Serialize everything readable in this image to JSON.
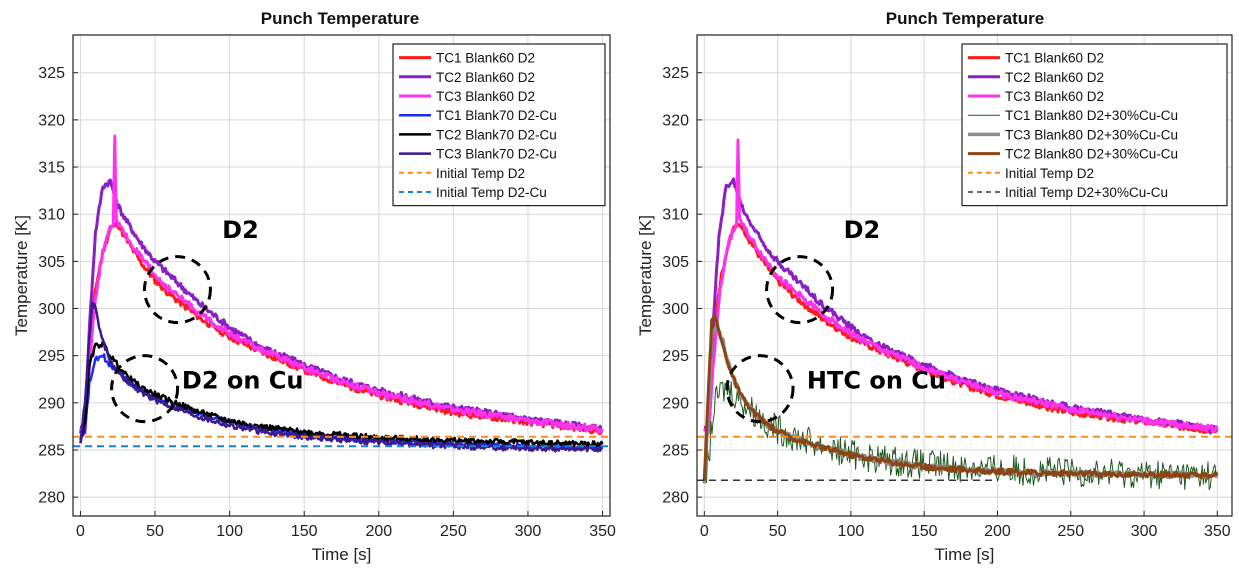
{
  "chart_data": [
    {
      "type": "line",
      "title": "Punch Temperature",
      "xlabel": "Time [s]",
      "ylabel": "Temperature [K]",
      "xlim": [
        -5,
        355
      ],
      "ylim": [
        278,
        329
      ],
      "xticks": [
        0,
        50,
        100,
        150,
        200,
        250,
        300,
        350
      ],
      "yticks": [
        280,
        285,
        290,
        295,
        300,
        305,
        310,
        315,
        320,
        325
      ],
      "grid": true,
      "legend_position": "top-right",
      "annotations": [
        {
          "text": "D2",
          "x": 95,
          "y": 307.5,
          "circle_x": 65,
          "circle_y": 302
        },
        {
          "text": "D2 on Cu",
          "x": 68,
          "y": 291.5,
          "circle_x": 43,
          "circle_y": 291.5
        }
      ],
      "series": [
        {
          "name": "TC1 Blank60 D2",
          "color": "#ff1a1a",
          "width": 3,
          "noise": 0.35,
          "x": [
            0,
            3,
            6,
            10,
            15,
            20,
            25,
            30,
            40,
            50,
            60,
            80,
            100,
            120,
            150,
            175,
            200,
            250,
            300,
            350
          ],
          "y": [
            287,
            287,
            295,
            302,
            306,
            308.5,
            309,
            307.5,
            305,
            303,
            301.5,
            299,
            297,
            295.5,
            293.5,
            292,
            290.8,
            289,
            288,
            287
          ]
        },
        {
          "name": "TC2 Blank60 D2",
          "color": "#8a1fc4",
          "width": 3,
          "noise": 0.35,
          "x": [
            0,
            3,
            6,
            10,
            15,
            20,
            25,
            30,
            40,
            50,
            60,
            80,
            100,
            120,
            150,
            175,
            200,
            250,
            300,
            350
          ],
          "y": [
            287,
            288,
            298,
            308,
            313,
            313.5,
            311,
            309.5,
            307,
            305,
            303.5,
            300.5,
            298,
            296,
            294,
            292.5,
            291.3,
            289.5,
            288.3,
            287.2
          ]
        },
        {
          "name": "TC3 Blank60 D2",
          "color": "#ff33ee",
          "width": 3,
          "noise": 0.35,
          "x": [
            0,
            3,
            6,
            10,
            15,
            20,
            22,
            23,
            24,
            26,
            30,
            40,
            50,
            60,
            80,
            100,
            120,
            150,
            175,
            200,
            250,
            300,
            350
          ],
          "y": [
            287,
            287,
            294,
            301,
            306,
            308.5,
            309,
            318,
            309.5,
            308.8,
            307.8,
            305.5,
            303.5,
            302,
            299.5,
            297.3,
            295.7,
            293.7,
            292.3,
            291,
            289.3,
            288.1,
            287.2
          ]
        },
        {
          "name": "TC1 Blank70 D2-Cu",
          "color": "#1a2ef0",
          "width": 2.5,
          "noise": 0.3,
          "x": [
            0,
            3,
            6,
            10,
            15,
            20,
            25,
            30,
            40,
            50,
            60,
            80,
            100,
            120,
            150,
            200,
            250,
            300,
            350
          ],
          "y": [
            286,
            287,
            292,
            294.5,
            295,
            294,
            293.5,
            292.5,
            291.3,
            290.6,
            290,
            288.8,
            288,
            287.3,
            286.6,
            286,
            285.6,
            285.4,
            285.2
          ]
        },
        {
          "name": "TC2 Blank70 D2-Cu",
          "color": "#000000",
          "width": 2.5,
          "noise": 0.3,
          "x": [
            0,
            3,
            6,
            10,
            15,
            20,
            25,
            30,
            40,
            50,
            60,
            80,
            100,
            120,
            150,
            200,
            250,
            300,
            350
          ],
          "y": [
            286,
            288,
            294,
            296,
            296.3,
            295,
            294,
            293,
            291.7,
            290.9,
            290.2,
            289,
            288.1,
            287.5,
            286.9,
            286.3,
            286,
            285.8,
            285.6
          ]
        },
        {
          "name": "TC3 Blank70 D2-Cu",
          "color": "#3b1a8c",
          "width": 2.5,
          "noise": 0.3,
          "x": [
            0,
            3,
            6,
            8,
            10,
            15,
            20,
            25,
            30,
            40,
            50,
            60,
            80,
            100,
            120,
            150,
            200,
            250,
            300,
            350
          ],
          "y": [
            286,
            290,
            297,
            300.5,
            300,
            296.5,
            294.5,
            293.3,
            292.5,
            291.2,
            290.3,
            289.7,
            288.5,
            287.6,
            287,
            286.4,
            285.8,
            285.4,
            285.2,
            285.1
          ]
        },
        {
          "name": "Initial Temp D2",
          "color": "#ff8c1a",
          "width": 2,
          "dash": "7,5",
          "noise": 0,
          "x": [
            -5,
            355
          ],
          "y": [
            286.4,
            286.4
          ]
        },
        {
          "name": "Initial Temp D2-Cu",
          "color": "#1a7fd6",
          "width": 2,
          "dash": "7,5",
          "noise": 0,
          "x": [
            -5,
            355
          ],
          "y": [
            285.4,
            285.4
          ]
        }
      ]
    },
    {
      "type": "line",
      "title": "Punch Temperature",
      "xlabel": "Time [s]",
      "ylabel": "Temperature [K]",
      "xlim": [
        -5,
        360
      ],
      "ylim": [
        278,
        329
      ],
      "xticks": [
        0,
        50,
        100,
        150,
        200,
        250,
        300,
        350
      ],
      "yticks": [
        280,
        285,
        290,
        295,
        300,
        305,
        310,
        315,
        320,
        325
      ],
      "grid": true,
      "legend_position": "top-right",
      "annotations": [
        {
          "text": "D2",
          "x": 95,
          "y": 307.5,
          "circle_x": 65,
          "circle_y": 302
        },
        {
          "text": "HTC on Cu",
          "x": 70,
          "y": 291.5,
          "circle_x": 38,
          "circle_y": 291.5
        }
      ],
      "series": [
        {
          "name": "TC1 Blank60 D2",
          "color": "#ff1a1a",
          "width": 3,
          "noise": 0.35,
          "x": [
            0,
            3,
            6,
            10,
            15,
            20,
            25,
            30,
            40,
            50,
            60,
            80,
            100,
            120,
            150,
            175,
            200,
            250,
            300,
            350
          ],
          "y": [
            287,
            287,
            295,
            302,
            306,
            308.5,
            309,
            307.5,
            305,
            303,
            301.5,
            299,
            297,
            295.5,
            293.5,
            292,
            290.8,
            289,
            288,
            287
          ]
        },
        {
          "name": "TC2 Blank60 D2",
          "color": "#8a1fc4",
          "width": 3,
          "noise": 0.35,
          "x": [
            0,
            3,
            6,
            10,
            15,
            20,
            25,
            30,
            40,
            50,
            60,
            80,
            100,
            120,
            150,
            175,
            200,
            250,
            300,
            350
          ],
          "y": [
            287,
            288,
            298,
            308,
            313,
            313.5,
            311,
            309.5,
            307,
            305,
            303.5,
            300.5,
            298,
            296,
            294,
            292.5,
            291.3,
            289.5,
            288.3,
            287.2
          ]
        },
        {
          "name": "TC3 Blank60 D2",
          "color": "#ff33ee",
          "width": 3,
          "noise": 0.35,
          "x": [
            0,
            3,
            6,
            10,
            15,
            20,
            22,
            23,
            24,
            26,
            30,
            40,
            50,
            60,
            80,
            100,
            120,
            150,
            175,
            200,
            250,
            300,
            350
          ],
          "y": [
            287,
            287,
            294,
            301,
            306,
            308.5,
            309,
            318,
            309.5,
            308.8,
            307.8,
            305.5,
            303.5,
            302,
            299.5,
            297.3,
            295.7,
            293.7,
            292.3,
            291,
            289.3,
            288.1,
            287.2
          ]
        },
        {
          "name": "TC1 Blank80 D2+30%Cu-Cu",
          "color": "#1f5a1f",
          "width": 1,
          "noise": 1.6,
          "x": [
            0,
            3,
            6,
            10,
            15,
            20,
            25,
            30,
            40,
            50,
            60,
            80,
            100,
            120,
            150,
            200,
            250,
            300,
            350
          ],
          "y": [
            281.5,
            284,
            289,
            291,
            291.5,
            291,
            290.3,
            289.5,
            288.2,
            287.2,
            286.5,
            285.5,
            284.6,
            284,
            283.4,
            282.9,
            282.6,
            282.4,
            282.3
          ]
        },
        {
          "name": "TC3 Blank80 D2+30%Cu-Cu",
          "color": "#8c8c8c",
          "width": 3.5,
          "noise": 0.3,
          "x": [
            0,
            3,
            5,
            8,
            12,
            15,
            20,
            25,
            30,
            40,
            50,
            60,
            80,
            100,
            120,
            150,
            200,
            250,
            300,
            350
          ],
          "y": [
            281.5,
            290,
            297,
            298,
            297,
            295,
            292.5,
            290.8,
            289.6,
            288,
            287,
            286.3,
            285.3,
            284.5,
            283.9,
            283.2,
            282.7,
            282.5,
            282.4,
            282.3
          ]
        },
        {
          "name": "TC2 Blank80 D2+30%Cu-Cu",
          "color": "#8b4513",
          "width": 3,
          "noise": 0.3,
          "x": [
            0,
            3,
            5,
            7,
            10,
            15,
            20,
            25,
            30,
            40,
            50,
            60,
            80,
            100,
            120,
            150,
            200,
            250,
            300,
            350
          ],
          "y": [
            281.5,
            292,
            298.5,
            299.5,
            297.5,
            294.8,
            292.5,
            290.8,
            289.6,
            288,
            287,
            286.3,
            285.3,
            284.5,
            283.9,
            283.2,
            282.7,
            282.5,
            282.4,
            282.3
          ]
        },
        {
          "name": "Initial Temp D2",
          "color": "#ff8c1a",
          "width": 2,
          "dash": "7,5",
          "noise": 0,
          "x": [
            -5,
            360
          ],
          "y": [
            286.4,
            286.4
          ]
        },
        {
          "name": "Initial Temp D2+30%Cu-Cu",
          "color": "#333333",
          "width": 1.5,
          "dash": "7,5",
          "noise": 0,
          "x": [
            -5,
            200
          ],
          "y": [
            281.8,
            281.8
          ]
        }
      ]
    }
  ]
}
